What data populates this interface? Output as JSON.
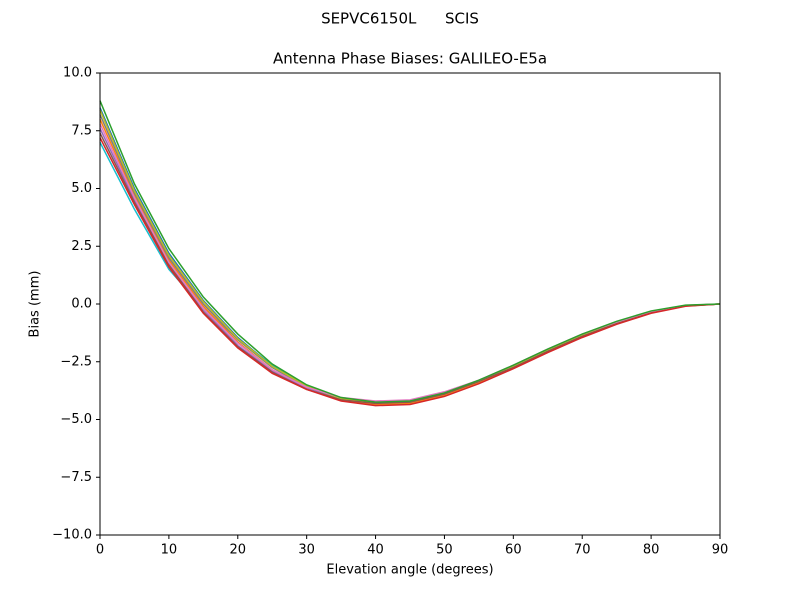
{
  "chart_data": {
    "type": "line",
    "suptitle": "SEPVC6150L      SCIS",
    "title": "Antenna Phase Biases: GALILEO-E5a",
    "x_label": "Elevation angle (degrees)",
    "y_label": "Bias (mm)",
    "x": [
      0,
      5,
      10,
      15,
      20,
      25,
      30,
      35,
      40,
      45,
      50,
      55,
      60,
      65,
      70,
      75,
      80,
      85,
      90
    ],
    "xlim": [
      0,
      90
    ],
    "xticks": [
      0,
      10,
      20,
      30,
      40,
      50,
      60,
      70,
      80,
      90
    ],
    "ylim": [
      -10,
      10
    ],
    "yticks": [
      {
        "value": -10,
        "label": "−10.0"
      },
      {
        "value": -7.5,
        "label": "−7.5"
      },
      {
        "value": -5,
        "label": "−5.0"
      },
      {
        "value": -2.5,
        "label": "−2.5"
      },
      {
        "value": 0,
        "label": "0.0"
      },
      {
        "value": 2.5,
        "label": "2.5"
      },
      {
        "value": 5,
        "label": "5.0"
      },
      {
        "value": 7.5,
        "label": "7.5"
      },
      {
        "value": 10,
        "label": "10.0"
      }
    ],
    "grid": false,
    "series": [
      {
        "color": "#17becf",
        "values": [
          7.0,
          4.1,
          1.5,
          -0.2,
          -1.5,
          -2.65,
          -3.6,
          -4.15,
          -4.35,
          -4.3,
          -3.95,
          -3.4,
          -2.75,
          -2.05,
          -1.4,
          -0.85,
          -0.38,
          -0.08,
          0
        ]
      },
      {
        "color": "#1f77b4",
        "values": [
          8.5,
          5.0,
          2.2,
          0.15,
          -1.45,
          -2.7,
          -3.55,
          -4.1,
          -4.3,
          -4.25,
          -3.9,
          -3.35,
          -2.7,
          -2.0,
          -1.35,
          -0.8,
          -0.35,
          -0.07,
          0
        ]
      },
      {
        "color": "#ff7f0e",
        "values": [
          8.0,
          4.7,
          1.9,
          -0.1,
          -1.65,
          -2.85,
          -3.65,
          -4.15,
          -4.35,
          -4.3,
          -3.95,
          -3.4,
          -2.75,
          -2.05,
          -1.4,
          -0.85,
          -0.38,
          -0.08,
          0
        ]
      },
      {
        "color": "#9467bd",
        "values": [
          7.6,
          4.5,
          1.75,
          -0.25,
          -1.8,
          -2.9,
          -3.65,
          -4.1,
          -4.25,
          -4.2,
          -3.85,
          -3.3,
          -2.7,
          -2.0,
          -1.35,
          -0.8,
          -0.35,
          -0.07,
          0
        ]
      },
      {
        "color": "#7f7f7f",
        "values": [
          8.2,
          4.8,
          2.0,
          0.0,
          -1.55,
          -2.75,
          -3.6,
          -4.1,
          -4.3,
          -4.25,
          -3.9,
          -3.35,
          -2.7,
          -2.0,
          -1.35,
          -0.8,
          -0.35,
          -0.07,
          0
        ]
      },
      {
        "color": "#bcbd22",
        "values": [
          8.4,
          4.9,
          2.1,
          0.1,
          -1.5,
          -2.7,
          -3.55,
          -4.1,
          -4.3,
          -4.25,
          -3.9,
          -3.35,
          -2.7,
          -2.0,
          -1.35,
          -0.8,
          -0.35,
          -0.07,
          0
        ]
      },
      {
        "color": "#8c564b",
        "values": [
          7.4,
          4.4,
          1.7,
          -0.35,
          -1.85,
          -2.95,
          -3.7,
          -4.15,
          -4.3,
          -4.25,
          -3.9,
          -3.35,
          -2.75,
          -2.05,
          -1.4,
          -0.85,
          -0.38,
          -0.08,
          0
        ]
      },
      {
        "color": "#e377c2",
        "values": [
          7.8,
          4.6,
          1.8,
          -0.2,
          -1.7,
          -2.85,
          -3.6,
          -4.05,
          -4.2,
          -4.15,
          -3.8,
          -3.3,
          -2.65,
          -1.95,
          -1.3,
          -0.78,
          -0.32,
          -0.06,
          0
        ]
      },
      {
        "color": "#d62728",
        "values": [
          7.2,
          4.3,
          1.6,
          -0.4,
          -1.9,
          -3.0,
          -3.7,
          -4.2,
          -4.4,
          -4.35,
          -4.0,
          -3.45,
          -2.8,
          -2.1,
          -1.45,
          -0.88,
          -0.4,
          -0.1,
          0
        ]
      },
      {
        "color": "#2ca02c",
        "values": [
          8.8,
          5.2,
          2.4,
          0.3,
          -1.3,
          -2.6,
          -3.5,
          -4.05,
          -4.25,
          -4.2,
          -3.85,
          -3.3,
          -2.65,
          -1.95,
          -1.3,
          -0.75,
          -0.3,
          -0.05,
          0
        ]
      }
    ]
  }
}
